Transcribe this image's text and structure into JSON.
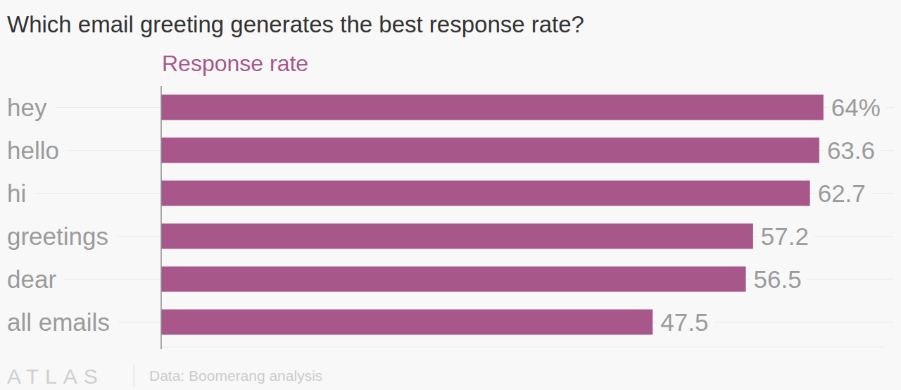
{
  "chart_data": {
    "type": "bar",
    "orientation": "horizontal",
    "title": "Which email greeting generates the best response rate?",
    "subtitle": "Response rate",
    "categories": [
      "hey",
      "hello",
      "hi",
      "greetings",
      "dear",
      "all emails"
    ],
    "values": [
      64,
      63.6,
      62.7,
      57.2,
      56.5,
      47.5
    ],
    "value_labels": [
      "64%",
      "63.6",
      "62.7",
      "57.2",
      "56.5",
      "47.5"
    ],
    "data_labels": true,
    "color": "#a8578a",
    "xlim": [
      0,
      70
    ],
    "grid": true,
    "tick_labels": false,
    "logo": "ATLAS",
    "source": "Data: Boomerang analysis"
  }
}
